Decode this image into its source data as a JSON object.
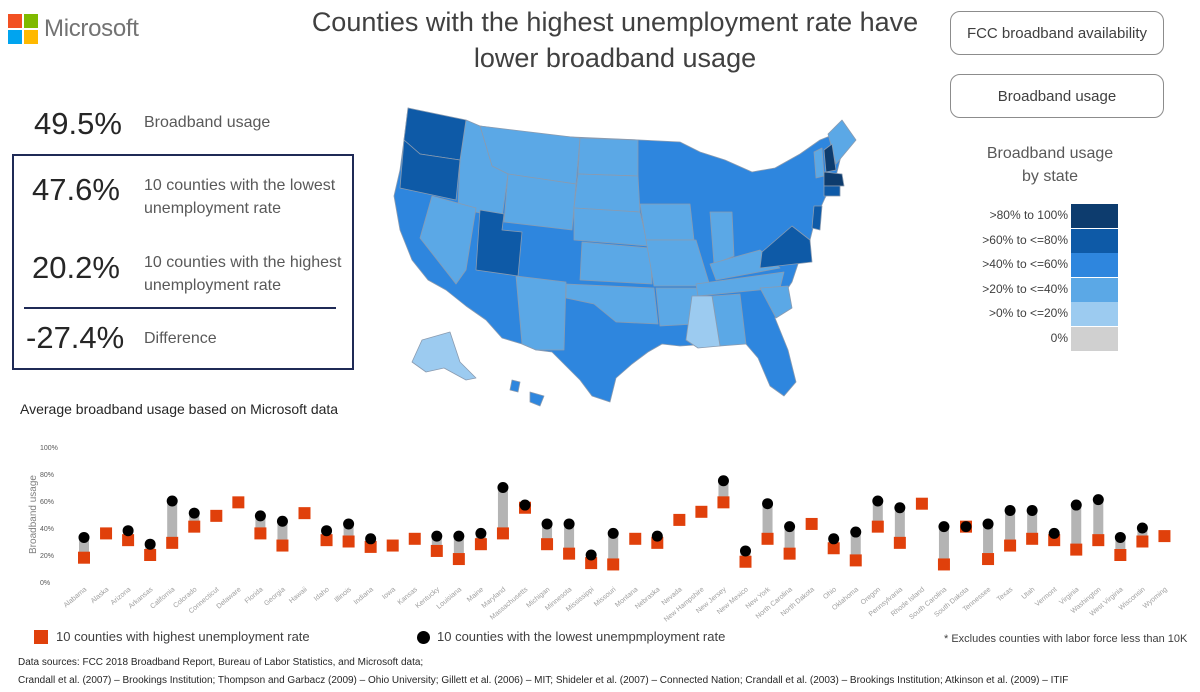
{
  "brand": {
    "name": "Microsoft",
    "logo_colors": [
      "#f25022",
      "#7fba00",
      "#00a4ef",
      "#ffb900"
    ]
  },
  "header": {
    "title_line1": "Counties with the highest unemployment rate have",
    "title_line2": "lower broadband usage"
  },
  "buttons": {
    "fcc": "FCC broadband availability",
    "usage": "Broadband usage"
  },
  "stats": {
    "broadband": {
      "value": "49.5%",
      "label": "Broadband usage"
    },
    "lowest": {
      "value": "47.6%",
      "label_line1": "10 counties with the lowest",
      "label_line2": "unemployment rate"
    },
    "highest": {
      "value": "20.2%",
      "label_line1": "10 counties with the highest",
      "label_line2": "unemployment rate"
    },
    "difference": {
      "value": "-27.4%",
      "label": "Difference"
    }
  },
  "map_legend": {
    "title_line1": "Broadband usage",
    "title_line2": "by state",
    "items": [
      {
        "label": ">80% to 100%",
        "color": "#0d3c6e"
      },
      {
        "label": ">60% to <=80%",
        "color": "#0e5aa7"
      },
      {
        "label": ">40% to <=60%",
        "color": "#2e86de"
      },
      {
        "label": ">20% to <=40%",
        "color": "#5ba8e6"
      },
      {
        "label": ">0% to <=20%",
        "color": "#9ccbf0"
      },
      {
        "label": "0%",
        "color": "#d0d0d0"
      }
    ]
  },
  "map_states": [
    {
      "name": "washington",
      "color": "#0e5aa7"
    },
    {
      "name": "oregon",
      "color": "#0e5aa7"
    },
    {
      "name": "utah",
      "color": "#0e5aa7"
    },
    {
      "name": "virginia",
      "color": "#0e5aa7"
    },
    {
      "name": "massachusetts",
      "color": "#0d3c6e"
    },
    {
      "name": "mississippi",
      "color": "#9ccbf0"
    }
  ],
  "chart_subtitle": "Average broadband usage based on Microsoft data",
  "chart_data": {
    "type": "scatter",
    "title": "Average broadband usage based on Microsoft data",
    "xlabel": "",
    "ylabel": "Broadband usage",
    "ylim": [
      0,
      100
    ],
    "yticks": [
      "0%",
      "20%",
      "40%",
      "60%",
      "80%",
      "100%"
    ],
    "categories": [
      "Alabama",
      "Alaska",
      "Arizona",
      "Arkansas",
      "California",
      "Colorado",
      "Connecticut",
      "Delaware",
      "Florida",
      "Georgia",
      "Hawaii",
      "Idaho",
      "Illinois",
      "Indiana",
      "Iowa",
      "Kansas",
      "Kentucky",
      "Louisiana",
      "Maine",
      "Maryland",
      "Massachusetts",
      "Michigan",
      "Minnesota",
      "Mississippi",
      "Missouri",
      "Montana",
      "Nebraska",
      "Nevada",
      "New Hampshire",
      "New Jersey",
      "New Mexico",
      "New York",
      "North Carolina",
      "North Dakota",
      "Ohio",
      "Oklahoma",
      "Oregon",
      "Pennsylvania",
      "Rhode Island",
      "South Carolina",
      "South Dakota",
      "Tennessee",
      "Texas",
      "Utah",
      "Vermont",
      "Virginia",
      "Washington",
      "West Virginia",
      "Wisconsin",
      "Wyoming"
    ],
    "series": [
      {
        "name": "10 counties with highest unemployment rate",
        "marker": "square",
        "color": "#e0400b",
        "values": [
          18,
          36,
          31,
          20,
          29,
          41,
          49,
          59,
          36,
          27,
          51,
          31,
          30,
          26,
          27,
          32,
          23,
          17,
          28,
          36,
          55,
          28,
          21,
          14,
          13,
          32,
          29,
          46,
          52,
          59,
          15,
          32,
          21,
          43,
          25,
          16,
          41,
          29,
          58,
          13,
          41,
          17,
          27,
          32,
          31,
          24,
          31,
          20,
          30,
          34
        ]
      },
      {
        "name": "10 counties with the lowest unempmployment rate",
        "marker": "circle",
        "color": "#000000",
        "values": [
          33,
          null,
          38,
          28,
          60,
          51,
          null,
          null,
          49,
          45,
          null,
          38,
          43,
          32,
          null,
          null,
          34,
          34,
          36,
          70,
          57,
          43,
          43,
          20,
          36,
          null,
          34,
          null,
          null,
          75,
          23,
          58,
          41,
          null,
          32,
          37,
          60,
          55,
          null,
          41,
          41,
          43,
          53,
          53,
          36,
          57,
          61,
          33,
          40,
          null
        ]
      }
    ]
  },
  "bottom_legend": {
    "high_label": "10 counties with highest unemployment rate",
    "low_label": "10 counties with the lowest unempmployment rate",
    "note": "* Excludes counties with labor force less than 10K"
  },
  "sources": {
    "line1": "Data sources:  FCC 2018 Broadband Report, Bureau of Labor Statistics, and Microsoft data;",
    "line2": "Crandall et al. (2007) – Brookings Institution; Thompson and Garbacz (2009) – Ohio University; Gillett et al. (2006) – MIT; Shideler et al. (2007) – Connected Nation; Crandall et al. (2003) – Brookings Institution; Atkinson et al. (2009) – ITIF"
  }
}
